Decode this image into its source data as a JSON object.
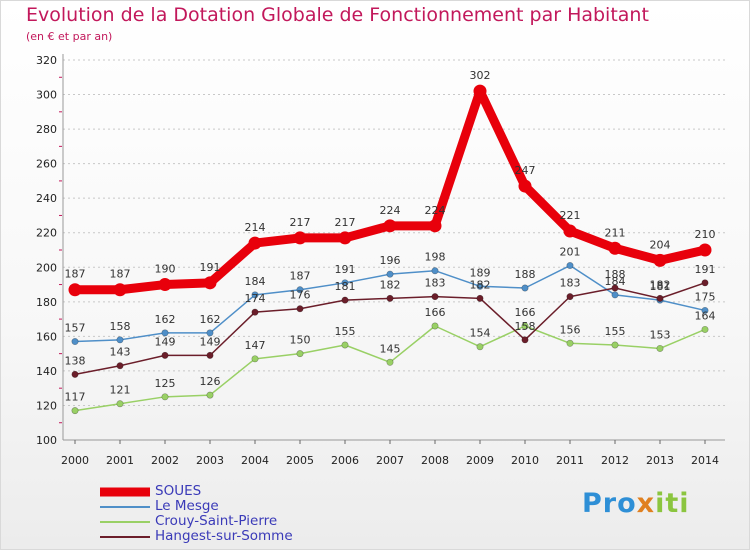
{
  "header": {
    "title": "Evolution de la Dotation Globale de Fonctionnement par Habitant",
    "subtitle": "(en € et par an)"
  },
  "logo": {
    "text": "Proxiti",
    "colors": [
      "#2e8fd6",
      "#e08020",
      "#8bc53f"
    ]
  },
  "chart_data": {
    "type": "line",
    "title": "Evolution de la Dotation Globale de Fonctionnement par Habitant",
    "subtitle": "(en € et par an)",
    "xlabel": "",
    "ylabel": "",
    "x": [
      "2000",
      "2001",
      "2002",
      "2003",
      "2004",
      "2005",
      "2006",
      "2007",
      "2008",
      "2009",
      "2010",
      "2011",
      "2012",
      "2013",
      "2014"
    ],
    "ylim": [
      100,
      320
    ],
    "yticks": [
      100,
      120,
      140,
      160,
      180,
      200,
      220,
      240,
      260,
      280,
      300,
      320
    ],
    "grid": "horizontal dotted",
    "legend_position": "bottom-left",
    "series": [
      {
        "name": "SOUES",
        "color": "#e8000b",
        "style": "thick",
        "values": [
          187,
          187,
          190,
          191,
          214,
          217,
          217,
          224,
          224,
          302,
          247,
          221,
          211,
          204,
          210
        ]
      },
      {
        "name": "Le Mesge",
        "color": "#4f8fc8",
        "style": "thin",
        "values": [
          157,
          158,
          162,
          162,
          184,
          187,
          191,
          196,
          198,
          189,
          188,
          201,
          184,
          181,
          175
        ]
      },
      {
        "name": "Crouy-Saint-Pierre",
        "color": "#99d065",
        "style": "thin",
        "values": [
          117,
          121,
          125,
          126,
          147,
          150,
          155,
          145,
          166,
          154,
          166,
          156,
          155,
          153,
          164
        ]
      },
      {
        "name": "Hangest-sur-Somme",
        "color": "#6b1e2a",
        "style": "thin",
        "values": [
          138,
          143,
          149,
          149,
          174,
          176,
          181,
          182,
          183,
          182,
          158,
          183,
          188,
          182,
          191
        ]
      }
    ]
  }
}
